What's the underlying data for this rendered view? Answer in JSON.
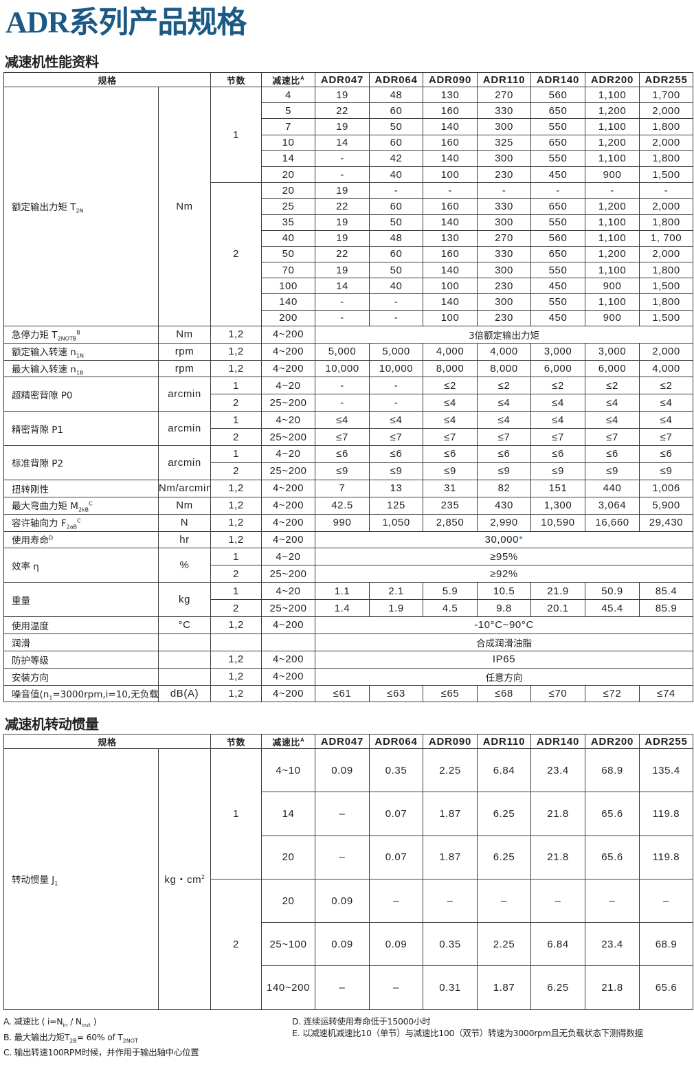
{
  "title": "ADR系列产品规格",
  "colors": {
    "title": "#1c5a86",
    "mark": "#2a7fc0",
    "border": "#3a3a3a"
  },
  "headers": {
    "spec": "规格",
    "stage": "节数",
    "ratio": "减速比",
    "ratio_sup": "A",
    "models": [
      "ADR047",
      "ADR064",
      "ADR090",
      "ADR110",
      "ADR140",
      "ADR200",
      "ADR255"
    ]
  },
  "perf": {
    "section_title": "减速机性能资料",
    "rows": [
      {
        "label": "额定输出力矩 T",
        "sub": "2N",
        "unit": "Nm",
        "entries": [
          {
            "stage": "1",
            "ratio": "4",
            "values": [
              "19",
              "48",
              "130",
              "270",
              "560",
              "1,100",
              "1,700"
            ]
          },
          {
            "stage": "1",
            "ratio": "5",
            "values": [
              "22",
              "60",
              "160",
              "330",
              "650",
              "1,200",
              "2,000"
            ]
          },
          {
            "stage": "1",
            "ratio": "7",
            "values": [
              "19",
              "50",
              "140",
              "300",
              "550",
              "1,100",
              "1,800"
            ]
          },
          {
            "stage": "1",
            "ratio": "10",
            "values": [
              "14",
              "60",
              "160",
              "325",
              "650",
              "1,200",
              "2,000"
            ]
          },
          {
            "stage": "1",
            "ratio": "14",
            "values": [
              "-",
              "42",
              "140",
              "300",
              "550",
              "1,100",
              "1,800"
            ]
          },
          {
            "stage": "1",
            "ratio": "20",
            "values": [
              "-",
              "40",
              "100",
              "230",
              "450",
              "900",
              "1,500"
            ]
          },
          {
            "stage": "2",
            "ratio": "20",
            "values": [
              "19",
              "-",
              "-",
              "-",
              "-",
              "-",
              "-"
            ]
          },
          {
            "stage": "2",
            "ratio": "25",
            "values": [
              "22",
              "60",
              "160",
              "330",
              "650",
              "1,200",
              "2,000"
            ]
          },
          {
            "stage": "2",
            "ratio": "35",
            "values": [
              "19",
              "50",
              "140",
              "300",
              "550",
              "1,100",
              "1,800"
            ]
          },
          {
            "stage": "2",
            "ratio": "40",
            "values": [
              "19",
              "48",
              "130",
              "270",
              "560",
              "1,100",
              "1, 700"
            ]
          },
          {
            "stage": "2",
            "ratio": "50",
            "values": [
              "22",
              "60",
              "160",
              "330",
              "650",
              "1,200",
              "2,000"
            ]
          },
          {
            "stage": "2",
            "ratio": "70",
            "values": [
              "19",
              "50",
              "140",
              "300",
              "550",
              "1,100",
              "1,800"
            ]
          },
          {
            "stage": "2",
            "ratio": "100",
            "values": [
              "14",
              "40",
              "100",
              "230",
              "450",
              "900",
              "1,500"
            ]
          },
          {
            "stage": "2",
            "ratio": "140",
            "values": [
              "-",
              "-",
              "140",
              "300",
              "550",
              "1,100",
              "1,800"
            ]
          },
          {
            "stage": "2",
            "ratio": "200",
            "values": [
              "-",
              "-",
              "100",
              "230",
              "450",
              "900",
              "1,500"
            ]
          }
        ]
      },
      {
        "label": "急停力矩 T",
        "sub": "2NOTB",
        "sup": "B",
        "unit": "Nm",
        "entries": [
          {
            "stage": "1,2",
            "ratio": "4~200",
            "all": "3倍额定输出力矩"
          }
        ]
      },
      {
        "label": "额定输入转速 n",
        "sub": "1N",
        "unit": "rpm",
        "entries": [
          {
            "stage": "1,2",
            "ratio": "4~200",
            "values": [
              "5,000",
              "5,000",
              "4,000",
              "4,000",
              "3,000",
              "3,000",
              "2,000"
            ]
          }
        ]
      },
      {
        "label": "最大输入转速 n",
        "sub": "1B",
        "unit": "rpm",
        "entries": [
          {
            "stage": "1,2",
            "ratio": "4~200",
            "values": [
              "10,000",
              "10,000",
              "8,000",
              "8,000",
              "6,000",
              "6,000",
              "4,000"
            ]
          }
        ]
      },
      {
        "label": "超精密背隙 P0",
        "unit": "arcmin",
        "entries": [
          {
            "stage": "1",
            "ratio": "4~20",
            "values": [
              "-",
              "-",
              "≤2",
              "≤2",
              "≤2",
              "≤2",
              "≤2"
            ]
          },
          {
            "stage": "2",
            "ratio": "25~200",
            "values": [
              "-",
              "-",
              "≤4",
              "≤4",
              "≤4",
              "≤4",
              "≤4"
            ]
          }
        ]
      },
      {
        "label": "精密背隙 P1",
        "unit": "arcmin",
        "entries": [
          {
            "stage": "1",
            "ratio": "4~20",
            "values": [
              "≤4",
              "≤4",
              "≤4",
              "≤4",
              "≤4",
              "≤4",
              "≤4"
            ]
          },
          {
            "stage": "2",
            "ratio": "25~200",
            "values": [
              "≤7",
              "≤7",
              "≤7",
              "≤7",
              "≤7",
              "≤7",
              "≤7"
            ]
          }
        ]
      },
      {
        "label": "标准背隙 P2",
        "unit": "arcmin",
        "entries": [
          {
            "stage": "1",
            "ratio": "4~20",
            "values": [
              "≤6",
              "≤6",
              "≤6",
              "≤6",
              "≤6",
              "≤6",
              "≤6"
            ]
          },
          {
            "stage": "2",
            "ratio": "25~200",
            "values": [
              "≤9",
              "≤9",
              "≤9",
              "≤9",
              "≤9",
              "≤9",
              "≤9"
            ]
          }
        ]
      },
      {
        "label": "扭转刚性",
        "unit": "Nm/arcmin",
        "entries": [
          {
            "stage": "1,2",
            "ratio": "4~200",
            "values": [
              "7",
              "13",
              "31",
              "82",
              "151",
              "440",
              "1,006"
            ]
          }
        ]
      },
      {
        "label": "最大弯曲力矩 M",
        "sub": "2kB",
        "sup": "C",
        "unit": "Nm",
        "entries": [
          {
            "stage": "1,2",
            "ratio": "4~200",
            "values": [
              "42.5",
              "125",
              "235",
              "430",
              "1,300",
              "3,064",
              "5,900"
            ]
          }
        ]
      },
      {
        "label": "容许轴向力 F",
        "sub": "2aB",
        "sup": "C",
        "unit": "N",
        "entries": [
          {
            "stage": "1,2",
            "ratio": "4~200",
            "values": [
              "990",
              "1,050",
              "2,850",
              "2,990",
              "10,590",
              "16,660",
              "29,430"
            ]
          }
        ]
      },
      {
        "label": "使用寿命",
        "sup": "D",
        "unit": "hr",
        "entries": [
          {
            "stage": "1,2",
            "ratio": "4~200",
            "all": "30,000",
            "mark": "*"
          }
        ]
      },
      {
        "label": "效率 η",
        "unit": "%",
        "entries": [
          {
            "stage": "1",
            "ratio": "4~20",
            "all": "≥95%"
          },
          {
            "stage": "2",
            "ratio": "25~200",
            "all": "≥92%"
          }
        ]
      },
      {
        "label": "重量",
        "unit": "kg",
        "entries": [
          {
            "stage": "1",
            "ratio": "4~20",
            "values": [
              "1.1",
              "2.1",
              "5.9",
              "10.5",
              "21.9",
              "50.9",
              "85.4"
            ]
          },
          {
            "stage": "2",
            "ratio": "25~200",
            "values": [
              "1.4",
              "1.9",
              "4.5",
              "9.8",
              "20.1",
              "45.4",
              "85.9"
            ]
          }
        ]
      },
      {
        "label": "使用温度",
        "unit": "°C",
        "entries": [
          {
            "stage": "1,2",
            "ratio": "4~200",
            "all": "-10°C~90°C"
          }
        ]
      },
      {
        "label": "润滑",
        "unit": "",
        "entries": [
          {
            "stage": "",
            "ratio": "",
            "all": "合成润滑油脂"
          }
        ]
      },
      {
        "label": "防护等级",
        "unit": "",
        "entries": [
          {
            "stage": "1,2",
            "ratio": "4~200",
            "all": "IP65"
          }
        ]
      },
      {
        "label": "安装方向",
        "unit": "",
        "entries": [
          {
            "stage": "1,2",
            "ratio": "4~200",
            "all": "任意方向"
          }
        ]
      },
      {
        "label": "噪音值(n",
        "sub": "1",
        "after": "=3000rpm,i=10,无负载)",
        "sup": "E",
        "unit": "dB(A)",
        "entries": [
          {
            "stage": "1,2",
            "ratio": "4~200",
            "values": [
              "≤61",
              "≤63",
              "≤65",
              "≤68",
              "≤70",
              "≤72",
              "≤74"
            ]
          }
        ]
      }
    ]
  },
  "inertia": {
    "section_title": "减速机转动惯量",
    "rows": [
      {
        "label": "转动惯量 J",
        "sub": "1",
        "unit": "kg・cm",
        "unit_sup": "2",
        "entries": [
          {
            "stage": "1",
            "ratio": "4~10",
            "values": [
              "0.09",
              "0.35",
              "2.25",
              "6.84",
              "23.4",
              "68.9",
              "135.4"
            ]
          },
          {
            "stage": "1",
            "ratio": "14",
            "values": [
              "–",
              "0.07",
              "1.87",
              "6.25",
              "21.8",
              "65.6",
              "119.8"
            ]
          },
          {
            "stage": "1",
            "ratio": "20",
            "values": [
              "–",
              "0.07",
              "1.87",
              "6.25",
              "21.8",
              "65.6",
              "119.8"
            ]
          },
          {
            "stage": "2",
            "ratio": "20",
            "values": [
              "0.09",
              "–",
              "–",
              "–",
              "–",
              "–",
              "–"
            ]
          },
          {
            "stage": "2",
            "ratio": "25~100",
            "values": [
              "0.09",
              "0.09",
              "0.35",
              "2.25",
              "6.84",
              "23.4",
              "68.9"
            ]
          },
          {
            "stage": "2",
            "ratio": "140~200",
            "values": [
              "–",
              "–",
              "0.31",
              "1.87",
              "6.25",
              "21.8",
              "65.6"
            ]
          }
        ]
      }
    ]
  },
  "notes": {
    "a": {
      "text": "A. 减速比 ( i=N",
      "sub1": "in",
      "mid": " / N",
      "sub2": "out",
      "end": " )"
    },
    "b": {
      "text": "B. 最大输出力矩T",
      "sub1": "2B",
      "mid": "= 60% of T",
      "sub2": "2NOT"
    },
    "c": "C. 输出转速100RPM时候，并作用于输出轴中心位置",
    "d": "D. 连续运转使用寿命低于15000小时",
    "e": "E. 以减速机减速比10（单节）与减速比100（双节）转速为3000rpm且无负载状态下测得数据"
  }
}
